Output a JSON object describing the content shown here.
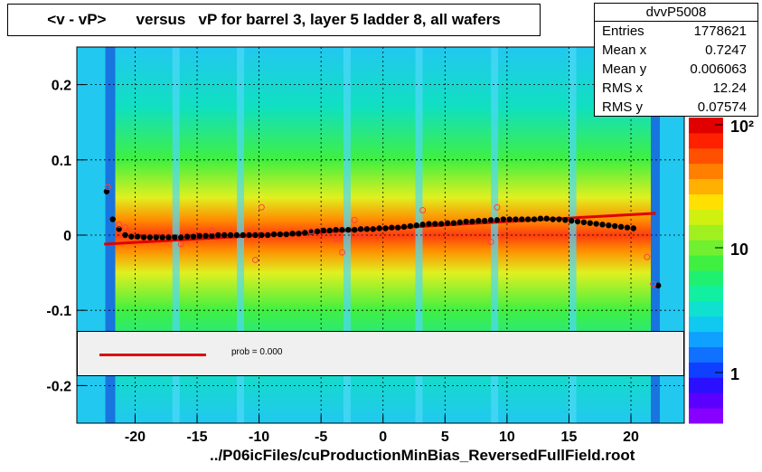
{
  "title": "<v - vP>       versus   vP for barrel 3, layer 5 ladder 8, all wafers",
  "footer": "../P06icFiles/cuProductionMinBias_ReversedFullField.root",
  "stats": {
    "name": "dvvP5008",
    "rows": [
      {
        "key": "Entries",
        "value": "1778621"
      },
      {
        "key": "Mean x",
        "value": "0.7247"
      },
      {
        "key": "Mean y",
        "value": "0.006063"
      },
      {
        "key": "RMS x",
        "value": "12.24"
      },
      {
        "key": "RMS y",
        "value": "0.07574"
      }
    ]
  },
  "fit_legend": {
    "text": "prob = 0.000",
    "line_color": "#e00000"
  },
  "chart_data": {
    "type": "heatmap",
    "title": "<v - vP>       versus   vP for barrel 3, layer 5 ladder 8, all wafers",
    "xlim": [
      -24.7,
      24.3
    ],
    "ylim": [
      -0.25,
      0.25
    ],
    "x_ticks": [
      -20,
      -15,
      -10,
      -5,
      0,
      5,
      10,
      15,
      20
    ],
    "x_tick_labels": [
      "-20",
      "-15",
      "-10",
      "-5",
      "0",
      "5",
      "10",
      "15",
      "20"
    ],
    "y_ticks": [
      -0.2,
      -0.1,
      0,
      0.1,
      0.2
    ],
    "y_tick_labels": [
      "-0.2",
      "-0.1",
      "0",
      "0.1",
      "0.2"
    ],
    "grid": true,
    "z_scale": "log",
    "z_tick_labels": [
      "1",
      "10",
      "10²"
    ],
    "profile_mean": {
      "x": [
        -22.3,
        -21.8,
        -21.3,
        -20.8,
        -20.3,
        -19.8,
        -19.3,
        -18.8,
        -18.3,
        -17.8,
        -17.3,
        -16.8,
        -16.3,
        -15.8,
        -15.3,
        -14.8,
        -14.3,
        -13.8,
        -13.3,
        -12.8,
        -12.3,
        -11.8,
        -11.3,
        -10.8,
        -10.3,
        -9.8,
        -9.3,
        -8.8,
        -8.3,
        -7.8,
        -7.3,
        -6.8,
        -6.3,
        -5.8,
        -5.3,
        -4.8,
        -4.3,
        -3.8,
        -3.3,
        -2.8,
        -2.3,
        -1.8,
        -1.3,
        -0.8,
        -0.3,
        0.2,
        0.7,
        1.2,
        1.7,
        2.2,
        2.7,
        3.2,
        3.7,
        4.2,
        4.7,
        5.2,
        5.7,
        6.2,
        6.7,
        7.2,
        7.7,
        8.2,
        8.7,
        9.2,
        9.7,
        10.2,
        10.7,
        11.2,
        11.7,
        12.2,
        12.7,
        13.2,
        13.7,
        14.2,
        14.7,
        15.2,
        15.7,
        16.2,
        16.7,
        17.2,
        17.7,
        18.2,
        18.7,
        19.2,
        19.7,
        20.2,
        22.2
      ],
      "y": [
        0.058,
        0.021,
        0.008,
        0.0,
        -0.002,
        -0.002,
        -0.003,
        -0.003,
        -0.003,
        -0.003,
        -0.003,
        -0.003,
        -0.003,
        -0.002,
        -0.002,
        -0.001,
        -0.001,
        -0.001,
        0.0,
        0.0,
        0.0,
        0.0,
        0.0,
        0.0,
        0.0,
        0.0,
        0.0,
        0.001,
        0.001,
        0.001,
        0.002,
        0.002,
        0.003,
        0.004,
        0.005,
        0.006,
        0.006,
        0.007,
        0.007,
        0.007,
        0.007,
        0.008,
        0.008,
        0.008,
        0.009,
        0.009,
        0.01,
        0.01,
        0.011,
        0.012,
        0.013,
        0.014,
        0.015,
        0.015,
        0.015,
        0.016,
        0.016,
        0.017,
        0.018,
        0.018,
        0.019,
        0.019,
        0.02,
        0.02,
        0.021,
        0.021,
        0.021,
        0.021,
        0.021,
        0.021,
        0.022,
        0.022,
        0.021,
        0.021,
        0.02,
        0.019,
        0.018,
        0.017,
        0.016,
        0.015,
        0.014,
        0.013,
        0.012,
        0.011,
        0.01,
        0.009,
        -0.067
      ]
    },
    "outliers": {
      "x": [
        -22.2,
        -21.3,
        -20.8,
        -16.3,
        -13.8,
        -10.3,
        -9.8,
        -5.8,
        -3.8,
        -3.3,
        -2.3,
        -1.8,
        3.2,
        8.7,
        9.2,
        21.3,
        21.8
      ],
      "y": [
        0.064,
        0.014,
        0.01,
        -0.012,
        0.006,
        -0.033,
        0.037,
        0.005,
        -0.005,
        -0.023,
        0.02,
        0.0,
        0.033,
        -0.009,
        0.037,
        -0.029,
        -0.065
      ]
    },
    "fit_line": {
      "x": [
        -22.5,
        22.0
      ],
      "y": [
        -0.012,
        0.029
      ]
    }
  }
}
